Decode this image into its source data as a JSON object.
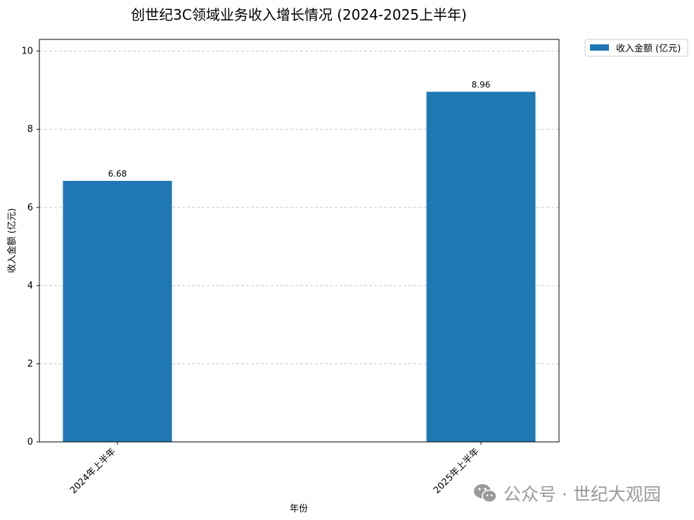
{
  "chart_data": {
    "type": "bar",
    "title": "创世纪3C领域业务收入增长情况 (2024-2025上半年)",
    "xlabel": "年份",
    "ylabel": "收入金额 (亿元)",
    "categories": [
      "2024年上半年",
      "2025年上半年"
    ],
    "series": [
      {
        "name": "收入金额 (亿元)",
        "values": [
          6.68,
          8.96
        ],
        "color": "#1f77b4"
      }
    ],
    "data_labels": [
      "6.68",
      "8.96"
    ],
    "ylim": [
      0,
      10.3
    ],
    "yticks": [
      0,
      2,
      4,
      6,
      8,
      10
    ],
    "grid": "y-dashed",
    "legend_placement": "outside-top-right"
  },
  "watermark": {
    "text": "公众号 · 世纪大观园",
    "icon": "wechat-icon"
  }
}
